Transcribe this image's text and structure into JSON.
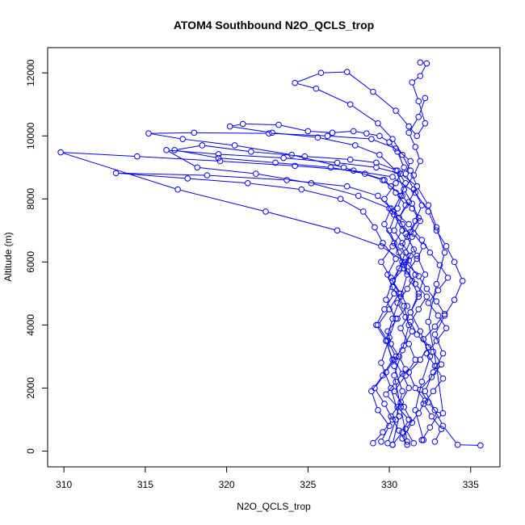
{
  "chart_data": {
    "type": "line",
    "title": "ATOM4 Southbound N2O_QCLS_trop",
    "xlabel": "N2O_QCLS_trop",
    "ylabel": "Altitude (m)",
    "xlim": [
      309,
      336.8
    ],
    "ylim": [
      -500,
      12800
    ],
    "xticks": [
      310,
      315,
      320,
      325,
      330,
      335
    ],
    "yticks": [
      0,
      2000,
      4000,
      6000,
      8000,
      10000,
      12000
    ],
    "grid": false,
    "legend": "none",
    "series": [
      {
        "color": "#0000ff",
        "marker": "open-circle",
        "x": [
          330.2,
          330.8,
          331.2,
          330.5,
          329.8,
          330.4,
          331.0,
          330.6,
          330.1,
          329.9,
          330.5,
          331.1,
          330.7,
          330.2,
          330.9,
          331.3,
          330.8,
          330.3,
          330.6,
          331.0,
          330.4,
          330.1,
          329.7,
          328.5,
          326.4,
          323.0,
          319.5,
          316.8,
          318.5,
          321.5,
          324.8,
          327.6,
          329.2,
          330.5,
          331.0,
          330.7,
          330.2,
          330.8,
          331.4,
          331.0,
          330.6,
          330.2,
          330.9,
          331.2,
          330.8,
          330.3,
          330.7,
          331.1
        ],
        "y": [
          200,
          600,
          1000,
          1400,
          1800,
          2200,
          2600,
          3000,
          3400,
          3800,
          4200,
          4600,
          5000,
          5400,
          5800,
          6200,
          6600,
          7000,
          7400,
          7800,
          8200,
          8400,
          8600,
          8800,
          9000,
          9150,
          9300,
          9550,
          9700,
          9500,
          9350,
          9250,
          9150,
          8900,
          8500,
          8100,
          7600,
          7200,
          6800,
          6300,
          5800,
          5200,
          4600,
          4000,
          3200,
          2400,
          1400,
          300
        ]
      },
      {
        "color": "#0000ff",
        "marker": "open-circle",
        "x": [
          331.5,
          331.0,
          331.8,
          332.2,
          331.6,
          331.2,
          331.9,
          332.4,
          331.7,
          331.3,
          331.8,
          332.3,
          331.6,
          331.1,
          331.7,
          332.1,
          331.5,
          331.9,
          331.4,
          330.8,
          329.6,
          327.2,
          324.0,
          320.5,
          317.3,
          315.2,
          318.0,
          322.6,
          326.2,
          328.9,
          330.4,
          331.3,
          331.0,
          331.5,
          332.0,
          331.6,
          331.1,
          331.7,
          332.2,
          331.8,
          331.3,
          331.9,
          332.5,
          332.0,
          331.6,
          332.1
        ],
        "y": [
          250,
          700,
          1200,
          1600,
          2000,
          2500,
          2900,
          3300,
          3700,
          4100,
          4500,
          4900,
          5300,
          5700,
          6100,
          6500,
          6900,
          7300,
          7700,
          8100,
          8600,
          9000,
          9400,
          9700,
          9900,
          10080,
          10100,
          10080,
          10000,
          9900,
          9600,
          9200,
          8800,
          8300,
          7800,
          7300,
          6800,
          6200,
          5600,
          5000,
          4400,
          3800,
          3000,
          2200,
          1300,
          350
        ]
      },
      {
        "color": "#0000ff",
        "marker": "open-circle",
        "x": [
          329.5,
          330.0,
          329.3,
          328.9,
          329.6,
          330.2,
          329.8,
          329.2,
          329.7,
          330.3,
          329.9,
          330.4,
          329.6,
          329.1,
          328.4,
          327.0,
          324.6,
          321.3,
          317.6,
          313.2,
          318.8,
          323.7,
          327.4,
          329.3,
          330.1,
          329.7,
          330.3,
          330.8,
          330.2,
          329.8,
          330.4,
          330.0,
          329.5,
          330.1,
          330.6,
          330.2
        ],
        "y": [
          300,
          800,
          1300,
          1900,
          2400,
          2900,
          3500,
          4000,
          4500,
          5000,
          5600,
          6100,
          6600,
          7100,
          7600,
          8000,
          8300,
          8500,
          8650,
          8820,
          8750,
          8600,
          8400,
          8100,
          7700,
          7200,
          6600,
          6000,
          5400,
          4800,
          4200,
          3600,
          2800,
          2000,
          1100,
          200
        ]
      },
      {
        "color": "#0000ff",
        "marker": "open-circle",
        "x": [
          332.0,
          332.5,
          333.0,
          332.4,
          331.9,
          332.6,
          333.2,
          332.7,
          332.1,
          332.8,
          333.4,
          332.9,
          332.3,
          331.8,
          331.0,
          329.5,
          326.8,
          322.4,
          317.0,
          309.8,
          314.5,
          319.6,
          324.2,
          327.8,
          330.2,
          331.6,
          332.4,
          332.9,
          333.5,
          334.0,
          334.5,
          334.0,
          333.4,
          332.8,
          333.3,
          332.7,
          332.2,
          332.8,
          333.3,
          334.2,
          335.6
        ],
        "y": [
          350,
          750,
          1150,
          1550,
          1950,
          2350,
          2750,
          3150,
          3550,
          3950,
          4350,
          4750,
          5150,
          5550,
          6000,
          6500,
          7000,
          7600,
          8300,
          9480,
          9350,
          9200,
          9050,
          8900,
          8700,
          8200,
          7600,
          7000,
          6500,
          6000,
          5400,
          4800,
          4300,
          3700,
          3100,
          2500,
          1900,
          1300,
          800,
          200,
          180
        ]
      },
      {
        "color": "#0000ff",
        "marker": "open-circle",
        "x": [
          330.8,
          331.4,
          330.9,
          330.3,
          331.0,
          331.6,
          331.2,
          330.7,
          331.3,
          331.8,
          331.4,
          330.9,
          331.5,
          331.0,
          330.6,
          331.2,
          331.7,
          331.3,
          330.8,
          330.2,
          329.3,
          327.6,
          325.5,
          324.2,
          325.8,
          327.4,
          329.0,
          330.4,
          331.2,
          331.7,
          332.2,
          331.8,
          331.4,
          331.9,
          332.3,
          331.9
        ],
        "y": [
          400,
          900,
          1400,
          1900,
          2400,
          2900,
          3400,
          3900,
          4400,
          4900,
          5400,
          5900,
          6400,
          6900,
          7400,
          7900,
          8400,
          8900,
          9400,
          9900,
          10400,
          11000,
          11500,
          11680,
          12000,
          12030,
          11400,
          10800,
          10300,
          10000,
          10400,
          11100,
          11700,
          11900,
          12300,
          12330
        ]
      },
      {
        "color": "#0000ff",
        "marker": "open-circle",
        "x": [
          329.0,
          329.6,
          330.2,
          329.7,
          329.1,
          329.8,
          330.4,
          329.9,
          329.3,
          330.0,
          330.6,
          330.1,
          329.5,
          330.2,
          330.8,
          330.3,
          329.7,
          330.4,
          330.9,
          330.5,
          330.0,
          329.4,
          328.6,
          327.8,
          326.5,
          325.0,
          323.2,
          321.0,
          320.2,
          322.8,
          325.6,
          327.9,
          329.4,
          330.4,
          330.9,
          330.5,
          330.0,
          330.6,
          331.1,
          330.7,
          330.2,
          329.8,
          330.3,
          330.8,
          330.4,
          329.9
        ],
        "y": [
          250,
          600,
          1000,
          1500,
          2000,
          2500,
          3000,
          3500,
          4000,
          4500,
          5000,
          5500,
          6000,
          6500,
          7000,
          7500,
          8000,
          8500,
          9000,
          9500,
          9800,
          10000,
          10080,
          10150,
          10100,
          10150,
          10350,
          10380,
          10300,
          10100,
          9950,
          9700,
          9400,
          8900,
          8300,
          7700,
          7000,
          6300,
          5600,
          4900,
          4200,
          3500,
          2700,
          1900,
          1000,
          250
        ]
      },
      {
        "color": "#0000ff",
        "marker": "open-circle",
        "x": [
          332.8,
          333.2,
          332.6,
          332.1,
          332.7,
          333.3,
          332.8,
          332.3,
          332.9,
          333.5,
          333.0,
          332.4,
          333.0,
          333.6,
          333.1,
          332.5,
          332.0,
          331.2,
          330.0,
          328.1,
          325.2,
          321.8,
          318.2,
          316.3,
          319.5,
          323.5,
          326.8,
          329.2,
          330.7,
          331.7,
          332.4,
          332.9,
          333.4,
          332.9,
          332.4,
          332.9,
          333.3
        ],
        "y": [
          300,
          700,
          1100,
          1500,
          1900,
          2300,
          2700,
          3100,
          3500,
          3900,
          4300,
          4700,
          5100,
          5500,
          5900,
          6300,
          6700,
          7200,
          7700,
          8100,
          8500,
          8800,
          9000,
          9550,
          9420,
          9300,
          9150,
          9000,
          8800,
          8400,
          7800,
          7100,
          6300,
          5300,
          4100,
          2700,
          1200
        ]
      },
      {
        "color": "#0000ff",
        "marker": "open-circle",
        "x": [
          331.1,
          330.6,
          330.1,
          330.7,
          331.2,
          330.8,
          330.3,
          330.9,
          331.4,
          331.0,
          330.5,
          331.1,
          331.6,
          331.2,
          330.7,
          331.3,
          331.8,
          331.4,
          330.9,
          331.5,
          331.9,
          331.6,
          331.2,
          331.8,
          332.2
        ],
        "y": [
          200,
          650,
          1100,
          1550,
          2000,
          2450,
          2900,
          3350,
          3800,
          4250,
          4700,
          5150,
          5600,
          6050,
          6500,
          6950,
          7400,
          7850,
          8300,
          8750,
          9200,
          9650,
          10100,
          10600,
          11200
        ]
      }
    ]
  }
}
